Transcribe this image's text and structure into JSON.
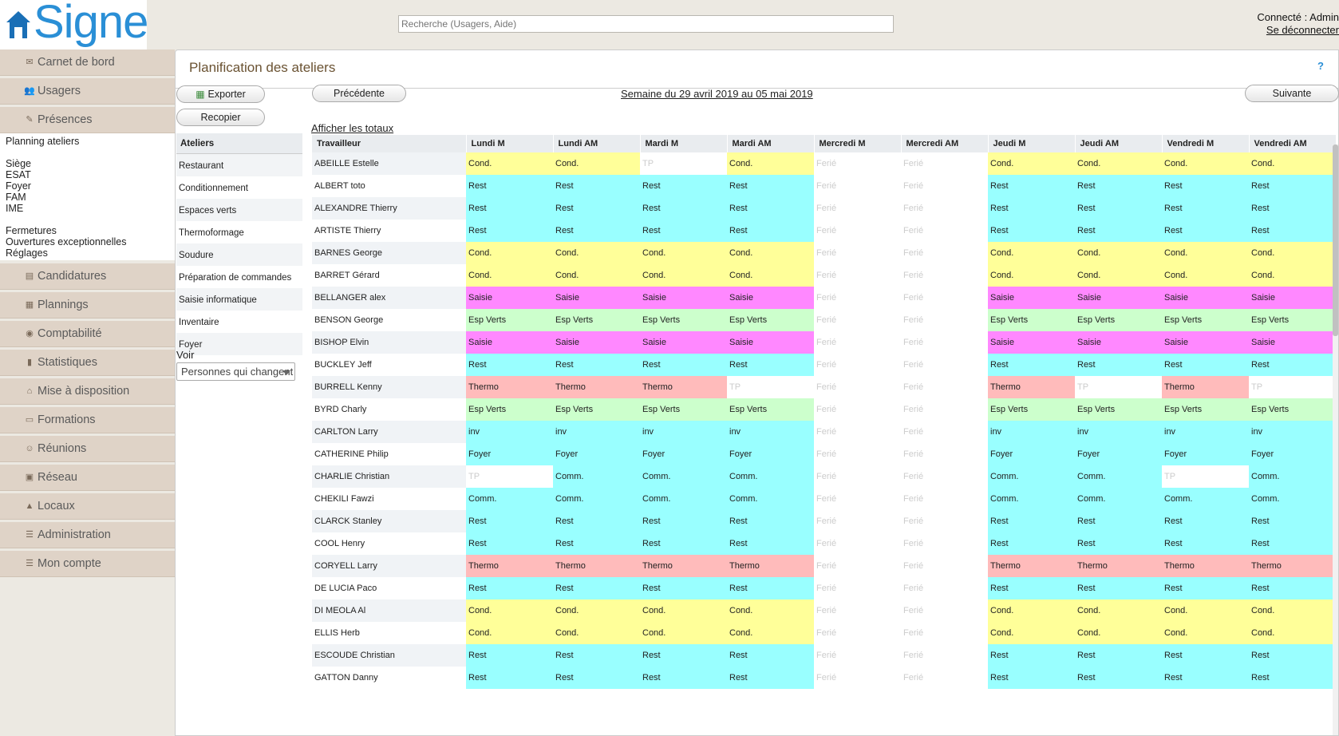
{
  "app": {
    "name": "Signe"
  },
  "search": {
    "placeholder": "Recherche (Usagers, Aide)"
  },
  "user": {
    "connected": "Connecté : Admin",
    "logout": "Se déconnecter"
  },
  "nav_top": [
    {
      "label": "Carnet de bord",
      "icon": "mail-icon"
    },
    {
      "label": "Usagers",
      "icon": "users-icon"
    },
    {
      "label": "Présences",
      "icon": "pen-icon"
    }
  ],
  "subnav": {
    "group1": [
      "Planning ateliers"
    ],
    "group2": [
      "Siège",
      "ESAT",
      "Foyer",
      "FAM",
      "IME"
    ],
    "group3": [
      "Fermetures",
      "Ouvertures exceptionnelles",
      "Réglages"
    ]
  },
  "nav_bottom": [
    {
      "label": "Candidatures",
      "icon": "folder-icon"
    },
    {
      "label": "Plannings",
      "icon": "calendar-icon"
    },
    {
      "label": "Comptabilité",
      "icon": "coins-icon"
    },
    {
      "label": "Statistiques",
      "icon": "chart-icon"
    },
    {
      "label": "Mise à disposition",
      "icon": "house-icon"
    },
    {
      "label": "Formations",
      "icon": "board-icon"
    },
    {
      "label": "Réunions",
      "icon": "meeting-icon"
    },
    {
      "label": "Réseau",
      "icon": "network-icon"
    },
    {
      "label": "Locaux",
      "icon": "building-icon"
    },
    {
      "label": "Administration",
      "icon": "admin-icon"
    },
    {
      "label": "Mon compte",
      "icon": "account-icon"
    }
  ],
  "main": {
    "title": "Planification des ateliers",
    "help": "?",
    "export": "Exporter",
    "copy": "Recopier",
    "prev": "Précédente",
    "next": "Suivante",
    "week": "Semaine du 29 avril 2019 au 05 mai 2019",
    "totals": "Afficher les totaux",
    "voir": "Voir",
    "filter_value": "Personnes qui changent"
  },
  "ateliers": {
    "header": "Ateliers",
    "items": [
      "Restaurant",
      "Conditionnement",
      "Espaces verts",
      "Thermoformage",
      "Soudure",
      "Préparation de commandes",
      "Saisie informatique",
      "Inventaire",
      "Foyer"
    ]
  },
  "table": {
    "worker_col": "Travailleur",
    "columns": [
      "Lundi M",
      "Lundi AM",
      "Mardi M",
      "Mardi AM",
      "Mercredi M",
      "Mercredi AM",
      "Jeudi M",
      "Jeudi AM",
      "Vendredi M",
      "Vendredi AM"
    ],
    "colors": {
      "Cond.": "#ffff99",
      "Rest": "#99ffff",
      "Saisie": "#ff88ff",
      "Esp Verts": "#ccffcc",
      "Thermo": "#ffbbbb",
      "inv": "#99ffff",
      "Foyer": "#99ffff",
      "Comm.": "#99ffff"
    },
    "rows": [
      {
        "name": "ABEILLE Estelle",
        "cells": [
          "Cond.",
          "Cond.",
          "TP",
          "Cond.",
          "Ferié",
          "Ferié",
          "Cond.",
          "Cond.",
          "Cond.",
          "Cond."
        ]
      },
      {
        "name": "ALBERT toto",
        "cells": [
          "Rest",
          "Rest",
          "Rest",
          "Rest",
          "Ferié",
          "Ferié",
          "Rest",
          "Rest",
          "Rest",
          "Rest"
        ]
      },
      {
        "name": "ALEXANDRE Thierry",
        "cells": [
          "Rest",
          "Rest",
          "Rest",
          "Rest",
          "Ferié",
          "Ferié",
          "Rest",
          "Rest",
          "Rest",
          "Rest"
        ]
      },
      {
        "name": "ARTISTE Thierry",
        "cells": [
          "Rest",
          "Rest",
          "Rest",
          "Rest",
          "Ferié",
          "Ferié",
          "Rest",
          "Rest",
          "Rest",
          "Rest"
        ]
      },
      {
        "name": "BARNES George",
        "cells": [
          "Cond.",
          "Cond.",
          "Cond.",
          "Cond.",
          "Ferié",
          "Ferié",
          "Cond.",
          "Cond.",
          "Cond.",
          "Cond."
        ]
      },
      {
        "name": "BARRET Gérard",
        "cells": [
          "Cond.",
          "Cond.",
          "Cond.",
          "Cond.",
          "Ferié",
          "Ferié",
          "Cond.",
          "Cond.",
          "Cond.",
          "Cond."
        ]
      },
      {
        "name": "BELLANGER alex",
        "cells": [
          "Saisie",
          "Saisie",
          "Saisie",
          "Saisie",
          "Ferié",
          "Ferié",
          "Saisie",
          "Saisie",
          "Saisie",
          "Saisie"
        ]
      },
      {
        "name": "BENSON George",
        "cells": [
          "Esp Verts",
          "Esp Verts",
          "Esp Verts",
          "Esp Verts",
          "Ferié",
          "Ferié",
          "Esp Verts",
          "Esp Verts",
          "Esp Verts",
          "Esp Verts"
        ]
      },
      {
        "name": "BISHOP Elvin",
        "cells": [
          "Saisie",
          "Saisie",
          "Saisie",
          "Saisie",
          "Ferié",
          "Ferié",
          "Saisie",
          "Saisie",
          "Saisie",
          "Saisie"
        ]
      },
      {
        "name": "BUCKLEY Jeff",
        "cells": [
          "Rest",
          "Rest",
          "Rest",
          "Rest",
          "Ferié",
          "Ferié",
          "Rest",
          "Rest",
          "Rest",
          "Rest"
        ]
      },
      {
        "name": "BURRELL Kenny",
        "cells": [
          "Thermo",
          "Thermo",
          "Thermo",
          "TP",
          "Ferié",
          "Ferié",
          "Thermo",
          "TP",
          "Thermo",
          "TP"
        ]
      },
      {
        "name": "BYRD Charly",
        "cells": [
          "Esp Verts",
          "Esp Verts",
          "Esp Verts",
          "Esp Verts",
          "Ferié",
          "Ferié",
          "Esp Verts",
          "Esp Verts",
          "Esp Verts",
          "Esp Verts"
        ]
      },
      {
        "name": "CARLTON Larry",
        "cells": [
          "inv",
          "inv",
          "inv",
          "inv",
          "Ferié",
          "Ferié",
          "inv",
          "inv",
          "inv",
          "inv"
        ]
      },
      {
        "name": "CATHERINE Philip",
        "cells": [
          "Foyer",
          "Foyer",
          "Foyer",
          "Foyer",
          "Ferié",
          "Ferié",
          "Foyer",
          "Foyer",
          "Foyer",
          "Foyer"
        ]
      },
      {
        "name": "CHARLIE Christian",
        "cells": [
          "TP",
          "Comm.",
          "Comm.",
          "Comm.",
          "Ferié",
          "Ferié",
          "Comm.",
          "Comm.",
          "TP",
          "Comm."
        ]
      },
      {
        "name": "CHEKILI Fawzi",
        "cells": [
          "Comm.",
          "Comm.",
          "Comm.",
          "Comm.",
          "Ferié",
          "Ferié",
          "Comm.",
          "Comm.",
          "Comm.",
          "Comm."
        ]
      },
      {
        "name": "CLARCK Stanley",
        "cells": [
          "Rest",
          "Rest",
          "Rest",
          "Rest",
          "Ferié",
          "Ferié",
          "Rest",
          "Rest",
          "Rest",
          "Rest"
        ]
      },
      {
        "name": "COOL Henry",
        "cells": [
          "Rest",
          "Rest",
          "Rest",
          "Rest",
          "Ferié",
          "Ferié",
          "Rest",
          "Rest",
          "Rest",
          "Rest"
        ]
      },
      {
        "name": "CORYELL Larry",
        "cells": [
          "Thermo",
          "Thermo",
          "Thermo",
          "Thermo",
          "Ferié",
          "Ferié",
          "Thermo",
          "Thermo",
          "Thermo",
          "Thermo"
        ]
      },
      {
        "name": "DE LUCIA Paco",
        "cells": [
          "Rest",
          "Rest",
          "Rest",
          "Rest",
          "Ferié",
          "Ferié",
          "Rest",
          "Rest",
          "Rest",
          "Rest"
        ]
      },
      {
        "name": "DI MEOLA Al",
        "cells": [
          "Cond.",
          "Cond.",
          "Cond.",
          "Cond.",
          "Ferié",
          "Ferié",
          "Cond.",
          "Cond.",
          "Cond.",
          "Cond."
        ]
      },
      {
        "name": "ELLIS Herb",
        "cells": [
          "Cond.",
          "Cond.",
          "Cond.",
          "Cond.",
          "Ferié",
          "Ferié",
          "Cond.",
          "Cond.",
          "Cond.",
          "Cond."
        ]
      },
      {
        "name": "ESCOUDE Christian",
        "cells": [
          "Rest",
          "Rest",
          "Rest",
          "Rest",
          "Ferié",
          "Ferié",
          "Rest",
          "Rest",
          "Rest",
          "Rest"
        ]
      },
      {
        "name": "GATTON Danny",
        "cells": [
          "Rest",
          "Rest",
          "Rest",
          "Rest",
          "Ferié",
          "Ferié",
          "Rest",
          "Rest",
          "Rest",
          "Rest"
        ]
      }
    ]
  }
}
